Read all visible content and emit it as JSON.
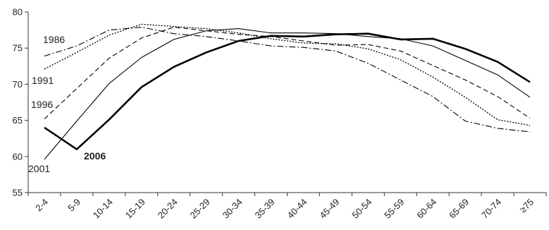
{
  "chart_data": {
    "type": "line",
    "title": "",
    "xlabel": "",
    "ylabel": "",
    "ylim": [
      55,
      80
    ],
    "yticks": [
      55,
      60,
      65,
      70,
      75,
      80
    ],
    "grid": false,
    "legend": "inline labels",
    "categories": [
      "2-4",
      "5-9",
      "10-14",
      "15-19",
      "20-24",
      "25-29",
      "30-34",
      "35-39",
      "40-44",
      "45-49",
      "50-54",
      "55-59",
      "60-64",
      "65-69",
      "70-74",
      "≥75"
    ],
    "series": [
      {
        "name": "1986",
        "style": "dash-dot",
        "values": [
          73.9,
          75.3,
          77.5,
          77.9,
          77.0,
          76.6,
          76.0,
          75.3,
          75.1,
          74.6,
          72.9,
          70.6,
          68.3,
          64.9,
          63.9,
          63.4
        ]
      },
      {
        "name": "1991",
        "style": "dotted",
        "values": [
          72.1,
          74.4,
          76.8,
          78.3,
          78.0,
          77.7,
          77.1,
          76.3,
          75.7,
          75.6,
          74.9,
          73.4,
          71.0,
          68.2,
          65.1,
          64.3
        ]
      },
      {
        "name": "1996",
        "style": "dashed",
        "values": [
          65.2,
          69.4,
          73.6,
          76.4,
          77.9,
          77.4,
          76.9,
          76.6,
          76.0,
          75.4,
          75.5,
          74.6,
          72.6,
          70.6,
          68.3,
          65.3
        ]
      },
      {
        "name": "2001",
        "style": "thin-solid",
        "values": [
          59.6,
          64.9,
          70.1,
          73.7,
          76.2,
          77.4,
          77.7,
          77.1,
          77.1,
          77.0,
          76.6,
          76.3,
          75.3,
          73.3,
          71.3,
          68.2
        ]
      },
      {
        "name": "2006",
        "style": "thick-solid",
        "values": [
          64.0,
          61.0,
          65.1,
          69.6,
          72.4,
          74.4,
          76.0,
          76.7,
          76.6,
          76.9,
          77.0,
          76.2,
          76.3,
          74.9,
          73.1,
          70.3
        ]
      }
    ]
  },
  "colors": {
    "line": "#000000",
    "axis": "#333333",
    "text": "#222222"
  }
}
